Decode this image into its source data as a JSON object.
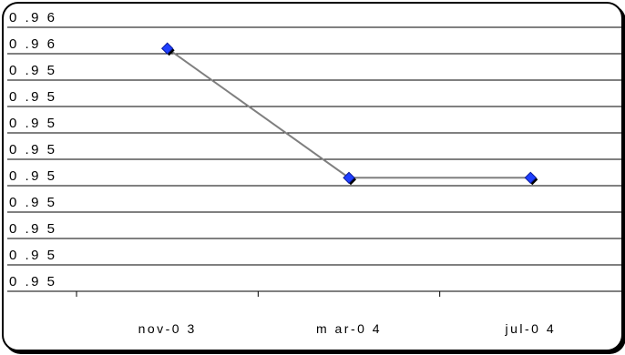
{
  "chart_data": {
    "type": "line",
    "title": "",
    "xlabel": "",
    "ylabel": "",
    "categories": [
      "nov-0 3",
      "m ar-0 4",
      "jul-0 4"
    ],
    "series": [
      {
        "values": [
          0.9592,
          0.9543,
          0.9543
        ]
      }
    ],
    "y_tick_labels": [
      "0 .9 6",
      "0 .9 6",
      "0 .9 5",
      "0 .9 5",
      "0 .9 5",
      "0 .9 5",
      "0 .9 5",
      "0 .9 5",
      "0 .9 5",
      "0 .9 5",
      "0 .9 5"
    ],
    "ylim": [
      0.95,
      0.96
    ],
    "grid": true,
    "legend": "none"
  },
  "colors": {
    "line": "#7f7f7f",
    "marker": "#1f3fff",
    "marker_shadow": "#000000",
    "gridline": "#000000"
  }
}
